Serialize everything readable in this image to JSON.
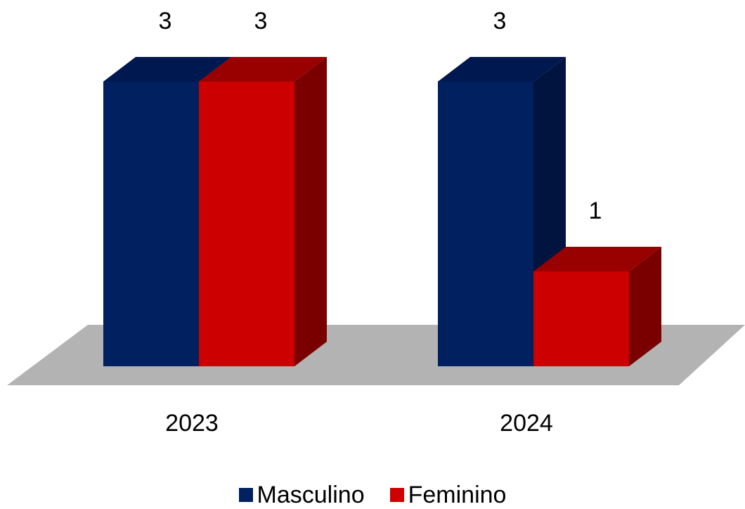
{
  "chart_data": {
    "type": "bar",
    "style": "3d-clustered-column",
    "categories": [
      "2023",
      "2024"
    ],
    "series": [
      {
        "name": "Masculino",
        "values": [
          3,
          3
        ],
        "color": "#002060",
        "top_color": "#001850",
        "side_color": "#00143f"
      },
      {
        "name": "Feminino",
        "values": [
          3,
          1
        ],
        "color": "#cc0000",
        "top_color": "#990000",
        "side_color": "#7a0000"
      }
    ],
    "floor_color": "#b3b3b3",
    "data_labels": true,
    "legend_position": "bottom",
    "grid": false,
    "ylim": [
      0,
      3
    ],
    "title": "",
    "xlabel": "",
    "ylabel": ""
  }
}
